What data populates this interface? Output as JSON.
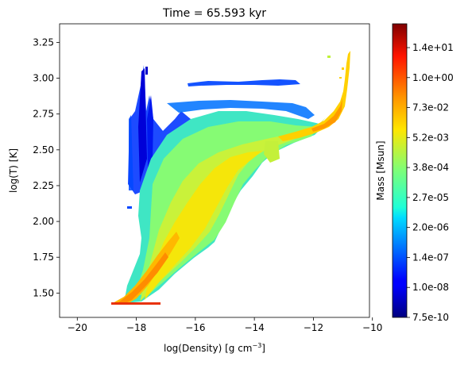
{
  "chart_data": {
    "type": "heatmap",
    "title": "Time = 65.593 kyr",
    "xlabel": "log(Density) [g cm",
    "xlabel_sup": "−3",
    "xlabel_end": "]",
    "ylabel": "log(T) [K]",
    "xlim": [
      -20.6,
      -10.1
    ],
    "ylim": [
      1.33,
      3.38
    ],
    "xticks": [
      -20,
      -18,
      -16,
      -14,
      -12,
      -10
    ],
    "xtick_labels": [
      "−20",
      "−18",
      "−16",
      "−14",
      "−12",
      "−10"
    ],
    "yticks": [
      1.5,
      1.75,
      2.0,
      2.25,
      2.5,
      2.75,
      3.0,
      3.25
    ],
    "ytick_labels": [
      "1.50",
      "1.75",
      "2.00",
      "2.25",
      "2.50",
      "2.75",
      "3.00",
      "3.25"
    ],
    "colorbar": {
      "label": "Mass [Msun]",
      "scale": "log",
      "colormap": "jet",
      "tick_labels": [
        "7.5e-10",
        "1.0e-08",
        "1.4e-07",
        "2.0e-06",
        "2.7e-05",
        "3.8e-04",
        "5.2e-03",
        "7.3e-02",
        "1.0e+00",
        "1.4e+01"
      ]
    },
    "grid": false,
    "regions": [
      {
        "name": "dense-cold-tail",
        "x_range": [
          -18.7,
          -16.5
        ],
        "y_range": [
          1.43,
          2.0
        ],
        "level": 0.82
      },
      {
        "name": "main-diagonal-band",
        "x_range": [
          -17.5,
          -13.5
        ],
        "y_range": [
          1.7,
          2.6
        ],
        "level": 0.7
      },
      {
        "name": "warm-plume",
        "x_range": [
          -16.0,
          -12.0
        ],
        "y_range": [
          2.4,
          2.7
        ],
        "level": 0.62
      },
      {
        "name": "high-density-hook",
        "x_range": [
          -12.0,
          -11.0
        ],
        "y_range": [
          2.6,
          3.2
        ],
        "level": 0.8
      },
      {
        "name": "low-density-column",
        "x_range": [
          -18.2,
          -17.4
        ],
        "y_range": [
          2.2,
          3.08
        ],
        "level": 0.12
      },
      {
        "name": "warm-low-mass-sheet",
        "x_range": [
          -16.5,
          -13.0
        ],
        "y_range": [
          2.85,
          2.97
        ],
        "level": 0.15
      }
    ]
  }
}
